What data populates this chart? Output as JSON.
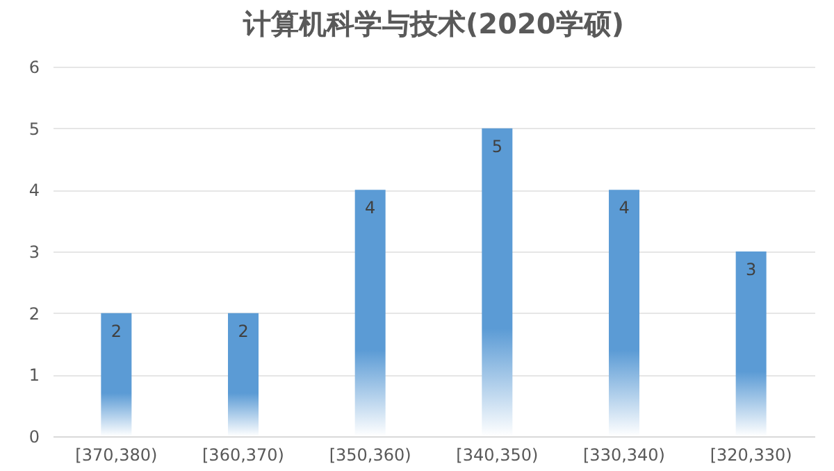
{
  "chart_data": {
    "type": "bar",
    "title": "计算机科学与技术(2020学硕)",
    "categories": [
      "[370,380)",
      "[360,370)",
      "[350,360)",
      "[340,350)",
      "[330,340)",
      "[320,330)"
    ],
    "values": [
      2,
      2,
      4,
      5,
      4,
      3
    ],
    "color": "#5b9bd5",
    "ylim": [
      0,
      6
    ],
    "yticks": [
      0,
      1,
      2,
      3,
      4,
      5,
      6
    ],
    "grid": "y",
    "data_labels": true
  }
}
